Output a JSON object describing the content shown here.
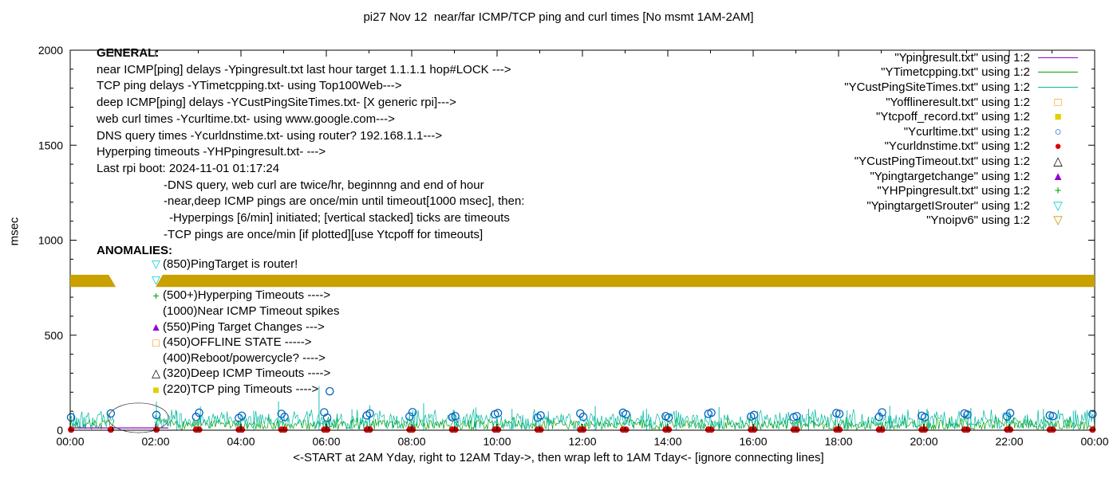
{
  "title": "pi27 Nov 12  near/far ICMP/TCP ping and curl times [No msmt 1AM-2AM]",
  "ylabel": "msec",
  "xlabel": "<-START at 2AM Yday, right to 12AM Tday->, then wrap left to 1AM Tday<- [ignore connecting lines]",
  "axes": {
    "xtick_labels": [
      "00:00",
      "02:00",
      "04:00",
      "06:00",
      "08:00",
      "10:00",
      "12:00",
      "14:00",
      "16:00",
      "18:00",
      "20:00",
      "22:00",
      "00:00"
    ],
    "ytick_values": [
      0,
      500,
      1000,
      1500,
      2000
    ],
    "ylim": [
      0,
      2000
    ],
    "xlim_hours": [
      0,
      24
    ]
  },
  "general": {
    "heading": "GENERAL:",
    "lines": [
      {
        "text": "near ICMP[ping] delays -Ypingresult.txt last hour target 1.1.1.1 hop#LOCK --->",
        "indent": 0
      },
      {
        "text": "TCP ping delays -YTimetcpping.txt- using Top100Web--->",
        "indent": 0
      },
      {
        "text": "deep ICMP[ping] delays -YCustPingSiteTimes.txt- [X generic rpi]--->",
        "indent": 0
      },
      {
        "text": "web curl times -Ycurltime.txt- using www.google.com--->",
        "indent": 0
      },
      {
        "text": "DNS query times -Ycurldnstime.txt- using router? 192.168.1.1--->",
        "indent": 0
      },
      {
        "text": "Hyperping timeouts -YHPpingresult.txt- --->",
        "indent": 0
      },
      {
        "text": "Last rpi boot: 2024-11-01 01:17:24",
        "indent": 0
      },
      {
        "text": "-DNS query, web curl are twice/hr, beginnng and end of hour",
        "indent": 1
      },
      {
        "text": "-near,deep ICMP pings are once/min until timeout[1000 msec], then:",
        "indent": 1
      },
      {
        "text": "-Hyperpings [6/min] initiated; [vertical stacked] ticks are timeouts",
        "indent": 2
      },
      {
        "text": "-TCP pings are once/min [if plotted][use Ytcpoff for timeouts]",
        "indent": 1
      }
    ]
  },
  "anomalies": {
    "heading": "ANOMALIES:",
    "items": [
      {
        "glyph": "▽",
        "color": "#00ced1",
        "text": "(850)PingTarget is router!"
      },
      {
        "glyph": "▽",
        "color": "#00ced1",
        "text": "",
        "note": "label obscured by Ynoipv6 marker band"
      },
      {
        "glyph": "+",
        "color": "#00a000",
        "text": "(500+)Hyperping Timeouts ---->"
      },
      {
        "glyph": "",
        "color": "#000000",
        "text": "(1000)Near ICMP Timeout spikes"
      },
      {
        "glyph": "▲",
        "color": "#9400d3",
        "text": "(550)Ping Target Changes --->"
      },
      {
        "glyph": "□",
        "color": "#ff8c00",
        "text": "(450)OFFLINE STATE ----->"
      },
      {
        "glyph": "",
        "color": "#000000",
        "text": "(400)Reboot/powercycle? ---->"
      },
      {
        "glyph": "△",
        "color": "#000000",
        "text": "(320)Deep ICMP Timeouts ---->"
      },
      {
        "glyph": "■",
        "color": "#e0d000",
        "text": "(220)TCP ping Timeouts ---->"
      }
    ]
  },
  "legend": {
    "entries": [
      {
        "label": "\"Ypingresult.txt\" using 1:2",
        "color": "#9400d3",
        "sample": "line"
      },
      {
        "label": "\"YTimetcpping.txt\" using 1:2",
        "color": "#00a000",
        "sample": "line"
      },
      {
        "label": "\"YCustPingSiteTimes.txt\" using 1:2",
        "color": "#00b7a0",
        "sample": "line"
      },
      {
        "label": "\"Yofflineresult.txt\" using 1:2",
        "color": "#ff8c00",
        "sample": "square-open"
      },
      {
        "label": "\"Ytcpoff_record.txt\" using 1:2",
        "color": "#e0d000",
        "sample": "square-filled"
      },
      {
        "label": "\"Ycurltime.txt\" using 1:2",
        "color": "#0062c4",
        "sample": "circle-open"
      },
      {
        "label": "\"Ycurldnstime.txt\" using 1:2",
        "color": "#dd0000",
        "sample": "circle-filled"
      },
      {
        "label": "\"YCustPingTimeout.txt\" using 1:2",
        "color": "#000000",
        "sample": "triangle-open"
      },
      {
        "label": "\"Ypingtargetchange\" using 1:2",
        "color": "#9400d3",
        "sample": "triangle-filled"
      },
      {
        "label": "\"YHPpingresult.txt\" using 1:2",
        "color": "#00a000",
        "sample": "plus"
      },
      {
        "label": "\"YpingtargetISrouter\" using 1:2",
        "color": "#00ced1",
        "sample": "triangle-down-open"
      },
      {
        "label": "\"Ynoipv6\" using 1:2",
        "color": "#cc9900",
        "sample": "triangle-down-open"
      }
    ]
  },
  "chart_data": {
    "type": "line",
    "title": "pi27 Nov 12  near/far ICMP/TCP ping and curl times [No msmt 1AM-2AM]",
    "xlabel": "<-START at 2AM Yday, right to 12AM Tday->, then wrap left to 1AM Tday<- [ignore connecting lines]",
    "ylabel": "msec",
    "ylim": [
      0,
      2000
    ],
    "xlim_hours": [
      0,
      24
    ],
    "no_measurement_gap_hours": [
      1.05,
      1.95
    ],
    "series": [
      {
        "name": "YTimetcpping.txt",
        "style": "noise",
        "color": "#00a000",
        "y_range": [
          3,
          55
        ],
        "step_min": 1.5,
        "seed": 7
      },
      {
        "name": "YCustPingSiteTimes.txt",
        "style": "noise",
        "color": "#00b7a0",
        "y_range": [
          5,
          88
        ],
        "step_min": 1.5,
        "seed": 42,
        "spikes": [
          [
            0.08,
            95
          ],
          [
            2.02,
            150
          ],
          [
            2.5,
            100
          ],
          [
            3.05,
            125
          ],
          [
            4.3,
            102
          ],
          [
            4.88,
            152
          ],
          [
            5.83,
            232
          ],
          [
            6.6,
            110
          ],
          [
            7.02,
            132
          ],
          [
            8.28,
            142
          ],
          [
            9.0,
            104
          ],
          [
            9.5,
            120
          ],
          [
            10.35,
            112
          ],
          [
            11.2,
            100
          ],
          [
            12.3,
            128
          ],
          [
            13.5,
            112
          ],
          [
            14.2,
            104
          ],
          [
            15.2,
            122
          ],
          [
            16.1,
            100
          ],
          [
            17.3,
            112
          ],
          [
            18.2,
            104
          ],
          [
            19.2,
            128
          ],
          [
            20.1,
            100
          ],
          [
            21.1,
            118
          ],
          [
            22.0,
            104
          ],
          [
            22.8,
            112
          ],
          [
            23.5,
            102
          ]
        ]
      },
      {
        "name": "Ypingresult.txt",
        "style": "line",
        "color": "#9400d3",
        "points": [
          [
            0.0,
            12
          ],
          [
            2.3,
            12
          ]
        ]
      },
      {
        "name": "connector-artifact",
        "style": "ellipse",
        "color": "#444444",
        "cx": 1.6,
        "cy": 65,
        "rx": 0.7,
        "ry": 78
      },
      {
        "name": "Ycurltime.txt",
        "style": "scatter-open-circle",
        "color": "#0062c4",
        "points": [
          [
            0.02,
            68
          ],
          [
            0.95,
            88
          ],
          [
            2.02,
            80
          ],
          [
            2.95,
            70
          ],
          [
            3.02,
            92
          ],
          [
            3.95,
            64
          ],
          [
            4.02,
            76
          ],
          [
            4.95,
            86
          ],
          [
            5.02,
            70
          ],
          [
            5.95,
            94
          ],
          [
            6.02,
            66
          ],
          [
            6.08,
            205
          ],
          [
            6.95,
            78
          ],
          [
            7.02,
            88
          ],
          [
            7.95,
            72
          ],
          [
            8.02,
            95
          ],
          [
            8.95,
            68
          ],
          [
            9.02,
            74
          ],
          [
            9.95,
            84
          ],
          [
            10.02,
            90
          ],
          [
            10.95,
            66
          ],
          [
            11.02,
            78
          ],
          [
            11.95,
            88
          ],
          [
            12.02,
            70
          ],
          [
            12.95,
            92
          ],
          [
            13.02,
            84
          ],
          [
            13.95,
            74
          ],
          [
            14.02,
            66
          ],
          [
            14.95,
            86
          ],
          [
            15.02,
            92
          ],
          [
            15.95,
            72
          ],
          [
            16.02,
            80
          ],
          [
            16.95,
            68
          ],
          [
            17.02,
            74
          ],
          [
            17.95,
            90
          ],
          [
            18.02,
            86
          ],
          [
            18.95,
            70
          ],
          [
            19.02,
            94
          ],
          [
            19.95,
            76
          ],
          [
            20.02,
            68
          ],
          [
            20.95,
            88
          ],
          [
            21.02,
            82
          ],
          [
            21.95,
            72
          ],
          [
            22.02,
            90
          ],
          [
            22.95,
            78
          ],
          [
            23.02,
            74
          ],
          [
            23.95,
            85
          ]
        ]
      },
      {
        "name": "Ycurldnstime.txt",
        "style": "scatter-filled-circle",
        "color": "#dd0000",
        "y_ms": 3,
        "at_same_x_as": "Ycurltime.txt"
      },
      {
        "name": "Ynoipv6",
        "style": "band",
        "color": "#c9a100",
        "y_center": 786,
        "y_half": 32,
        "segments": [
          [
            0,
            1.07
          ],
          [
            2.0,
            24
          ]
        ]
      }
    ]
  }
}
